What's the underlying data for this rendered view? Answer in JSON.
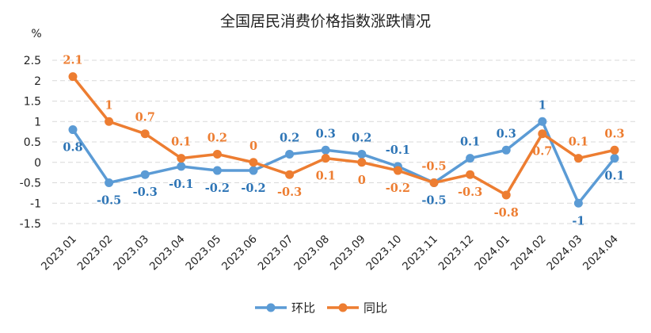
{
  "chart_data": {
    "type": "line",
    "title": "全国居民消费价格指数涨跌情况",
    "unit": "%",
    "categories": [
      "2023.01",
      "2023.02",
      "2023.03",
      "2023.04",
      "2023.05",
      "2023.06",
      "2023.07",
      "2023.08",
      "2023.09",
      "2023.10",
      "2023.11",
      "2023.12",
      "2024.01",
      "2024.02",
      "2024.03",
      "2024.04"
    ],
    "yticks": [
      "2.5",
      "2",
      "1.5",
      "1",
      "0.5",
      "0",
      "-0.5",
      "-1",
      "-1.5"
    ],
    "ylim": [
      -1.5,
      2.5
    ],
    "grid": true,
    "legend_position": "bottom",
    "series": [
      {
        "name": "环比",
        "color": "#5B9BD5",
        "label_color": "#2E75B6",
        "values": [
          0.8,
          -0.5,
          -0.3,
          -0.1,
          -0.2,
          -0.2,
          0.2,
          0.3,
          0.2,
          -0.1,
          -0.5,
          0.1,
          0.3,
          1,
          -1,
          0.1
        ],
        "labels": [
          "0.8",
          "-0.5",
          "-0.3",
          "-0.1",
          "-0.2",
          "-0.2",
          "0.2",
          "0.3",
          "0.2",
          "-0.1",
          "-0.5",
          "0.1",
          "0.3",
          "1",
          "-1",
          "0.1"
        ]
      },
      {
        "name": "同比",
        "color": "#ED7D31",
        "label_color": "#ED7D31",
        "values": [
          2.1,
          1,
          0.7,
          0.1,
          0.2,
          0,
          -0.3,
          0.1,
          0,
          -0.2,
          -0.5,
          -0.3,
          -0.8,
          0.7,
          0.1,
          0.3
        ],
        "labels": [
          "2.1",
          "1",
          "0.7",
          "0.1",
          "0.2",
          "0",
          "-0.3",
          "0.1",
          "0",
          "-0.2",
          "-0.5",
          "-0.3",
          "-0.8",
          "0.7",
          "0.1",
          "0.3"
        ]
      }
    ]
  }
}
